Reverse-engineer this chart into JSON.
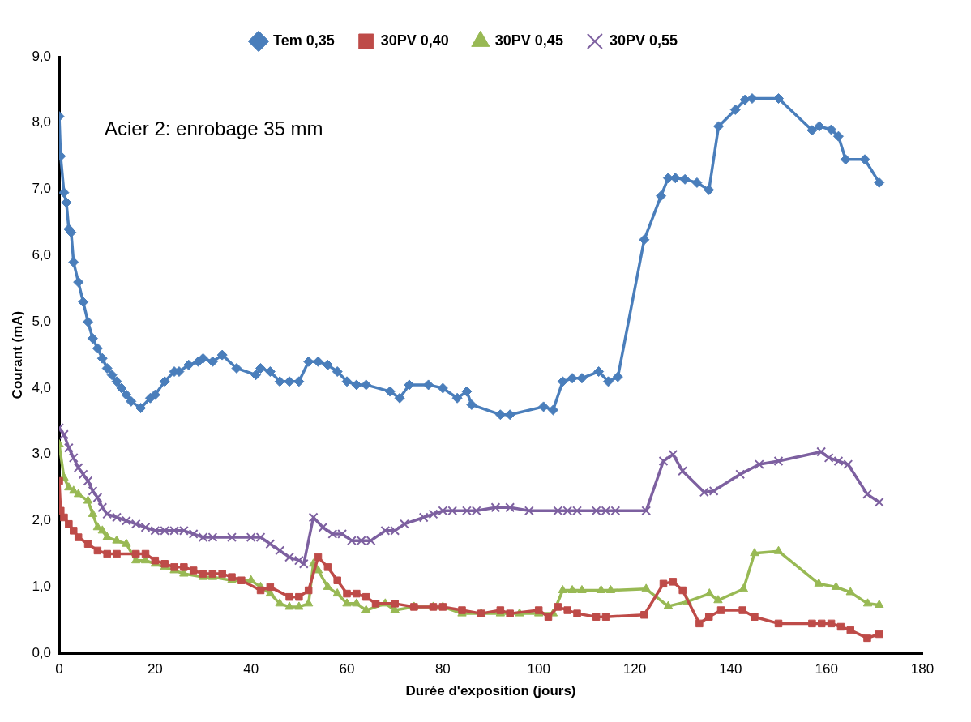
{
  "chart_data": {
    "type": "line",
    "xlabel": "Durée d'exposition (jours)",
    "ylabel": "Courant (mA)",
    "annotations": [
      "Acier 2: enrobage 35 mm"
    ],
    "xlim": [
      0,
      180
    ],
    "xticks": [
      0,
      20,
      40,
      60,
      80,
      100,
      120,
      140,
      160,
      180
    ],
    "ylim": [
      0,
      9
    ],
    "yticks": [
      {
        "value": 0,
        "label": "0,0"
      },
      {
        "value": 1,
        "label": "1,0"
      },
      {
        "value": 2,
        "label": "2,0"
      },
      {
        "value": 3,
        "label": "3,0"
      },
      {
        "value": 4,
        "label": "4,0"
      },
      {
        "value": 5,
        "label": "5,0"
      },
      {
        "value": 6,
        "label": "6,0"
      },
      {
        "value": 7,
        "label": "7,0"
      },
      {
        "value": 8,
        "label": "8,0"
      },
      {
        "value": 9,
        "label": "9,0"
      }
    ],
    "grid": false,
    "legend": "top",
    "line_style": "solid",
    "series": [
      {
        "name": "Tem 0,35",
        "color": "#4a7ebb",
        "marker": "diamond",
        "x": [
          0,
          0.3,
          1,
          1.5,
          2,
          2.5,
          3,
          4,
          5,
          6,
          7,
          8,
          9,
          10,
          11,
          12,
          13,
          14,
          15,
          17,
          19,
          20,
          22,
          24,
          25,
          27,
          29,
          30,
          32,
          34,
          37,
          41,
          42,
          44,
          46,
          48,
          50,
          52,
          54,
          56,
          58,
          60,
          62,
          64,
          69,
          71,
          73,
          77,
          80,
          83,
          85,
          86,
          92,
          94,
          101,
          103,
          105,
          107,
          109,
          112.5,
          114.5,
          116.5,
          122,
          125.5,
          127,
          128.5,
          130.5,
          133,
          135.5,
          137.5,
          141,
          143,
          144.5,
          150,
          157,
          158.5,
          161,
          162.5,
          164,
          168,
          171
        ],
        "values": [
          8.1,
          7.5,
          6.95,
          6.8,
          6.4,
          6.35,
          5.9,
          5.6,
          5.3,
          5.0,
          4.75,
          4.6,
          4.45,
          4.3,
          4.2,
          4.1,
          4.0,
          3.9,
          3.8,
          3.7,
          3.85,
          3.9,
          4.1,
          4.25,
          4.25,
          4.35,
          4.4,
          4.45,
          4.4,
          4.5,
          4.3,
          4.2,
          4.3,
          4.25,
          4.1,
          4.1,
          4.1,
          4.4,
          4.4,
          4.35,
          4.25,
          4.1,
          4.05,
          4.05,
          3.95,
          3.85,
          4.05,
          4.05,
          4.0,
          3.85,
          3.95,
          3.75,
          3.6,
          3.6,
          3.72,
          3.67,
          4.1,
          4.15,
          4.15,
          4.25,
          4.1,
          4.17,
          6.24,
          6.9,
          7.17,
          7.17,
          7.15,
          7.1,
          6.99,
          7.95,
          8.2,
          8.35,
          8.37,
          8.37,
          7.89,
          7.95,
          7.9,
          7.8,
          7.45,
          7.45,
          7.1
        ]
      },
      {
        "name": "30PV 0,40",
        "color": "#be4b48",
        "marker": "square",
        "x": [
          0,
          0.3,
          1,
          2,
          3,
          4,
          6,
          8,
          10,
          12,
          16,
          18,
          20,
          22,
          24,
          26,
          28,
          30,
          32,
          34,
          36,
          38,
          42,
          44,
          48,
          50,
          52,
          54,
          56,
          58,
          60,
          62,
          64,
          66,
          70,
          74,
          78,
          80,
          84,
          88,
          92,
          94,
          100,
          102,
          104,
          106,
          108,
          112,
          114,
          122,
          126,
          128,
          130,
          133.5,
          135.5,
          138,
          142.5,
          145,
          150,
          157,
          159,
          161,
          163,
          165,
          168.5,
          171
        ],
        "values": [
          2.6,
          2.15,
          2.05,
          1.95,
          1.85,
          1.75,
          1.65,
          1.55,
          1.5,
          1.5,
          1.5,
          1.5,
          1.4,
          1.35,
          1.3,
          1.3,
          1.25,
          1.2,
          1.2,
          1.2,
          1.15,
          1.1,
          0.95,
          1.0,
          0.85,
          0.85,
          0.95,
          1.45,
          1.3,
          1.1,
          0.9,
          0.9,
          0.85,
          0.75,
          0.75,
          0.7,
          0.7,
          0.7,
          0.65,
          0.6,
          0.65,
          0.6,
          0.65,
          0.55,
          0.7,
          0.65,
          0.6,
          0.55,
          0.55,
          0.58,
          1.05,
          1.08,
          0.95,
          0.45,
          0.55,
          0.65,
          0.65,
          0.55,
          0.45,
          0.45,
          0.45,
          0.45,
          0.4,
          0.35,
          0.23,
          0.29
        ]
      },
      {
        "name": "30PV 0,45",
        "color": "#98b954",
        "marker": "triangle",
        "x": [
          0,
          1,
          2,
          3,
          4,
          6,
          7,
          8,
          9,
          10,
          12,
          14,
          16,
          18,
          20,
          22,
          24,
          26,
          30,
          32,
          36,
          40,
          42,
          44,
          46,
          48,
          50,
          52,
          53,
          54,
          56,
          58,
          60,
          62,
          64,
          68,
          70,
          74,
          78,
          80,
          84,
          88,
          92,
          96,
          100,
          103,
          105,
          107,
          109,
          113,
          115,
          122.4,
          127,
          131,
          135.6,
          137.4,
          142.7,
          145,
          150,
          158.4,
          162,
          165,
          168.6,
          171
        ],
        "values": [
          3.15,
          2.65,
          2.5,
          2.45,
          2.4,
          2.3,
          2.1,
          1.9,
          1.85,
          1.75,
          1.7,
          1.65,
          1.4,
          1.4,
          1.35,
          1.3,
          1.25,
          1.2,
          1.15,
          1.15,
          1.1,
          1.1,
          1.0,
          0.9,
          0.75,
          0.7,
          0.7,
          0.75,
          1.35,
          1.25,
          1.0,
          0.9,
          0.75,
          0.75,
          0.65,
          0.75,
          0.65,
          0.7,
          0.7,
          0.7,
          0.6,
          0.6,
          0.6,
          0.6,
          0.6,
          0.6,
          0.95,
          0.95,
          0.95,
          0.95,
          0.95,
          0.97,
          0.71,
          0.78,
          0.9,
          0.8,
          0.97,
          1.51,
          1.54,
          1.05,
          1.0,
          0.92,
          0.75,
          0.73
        ]
      },
      {
        "name": "30PV 0,55",
        "color": "#7d60a0",
        "marker": "cross",
        "x": [
          0,
          1,
          2,
          3,
          4,
          5,
          6,
          7,
          8,
          9,
          10,
          12,
          14,
          16,
          18,
          20,
          22,
          24,
          26,
          28,
          30,
          32,
          36,
          40,
          42,
          44,
          46,
          48,
          50,
          51,
          53,
          55,
          57,
          59,
          61,
          63,
          65,
          68,
          70,
          72,
          76,
          78,
          80,
          82,
          85,
          87,
          91,
          94,
          98,
          104,
          106,
          108,
          112,
          114,
          116,
          122.4,
          126,
          128,
          130,
          134.5,
          136.5,
          142,
          146,
          150,
          158.9,
          160.5,
          162.5,
          164.5,
          168.5,
          171
        ],
        "values": [
          3.4,
          3.3,
          3.1,
          2.95,
          2.8,
          2.7,
          2.6,
          2.45,
          2.35,
          2.2,
          2.1,
          2.05,
          2.0,
          1.95,
          1.9,
          1.85,
          1.85,
          1.85,
          1.85,
          1.8,
          1.75,
          1.75,
          1.75,
          1.75,
          1.75,
          1.65,
          1.55,
          1.45,
          1.4,
          1.35,
          2.05,
          1.9,
          1.8,
          1.8,
          1.7,
          1.7,
          1.7,
          1.85,
          1.85,
          1.95,
          2.05,
          2.1,
          2.15,
          2.15,
          2.15,
          2.15,
          2.2,
          2.2,
          2.15,
          2.15,
          2.15,
          2.15,
          2.15,
          2.15,
          2.15,
          2.15,
          2.9,
          3.0,
          2.75,
          2.43,
          2.45,
          2.7,
          2.85,
          2.9,
          3.04,
          2.95,
          2.9,
          2.85,
          2.4,
          2.28
        ]
      }
    ]
  }
}
